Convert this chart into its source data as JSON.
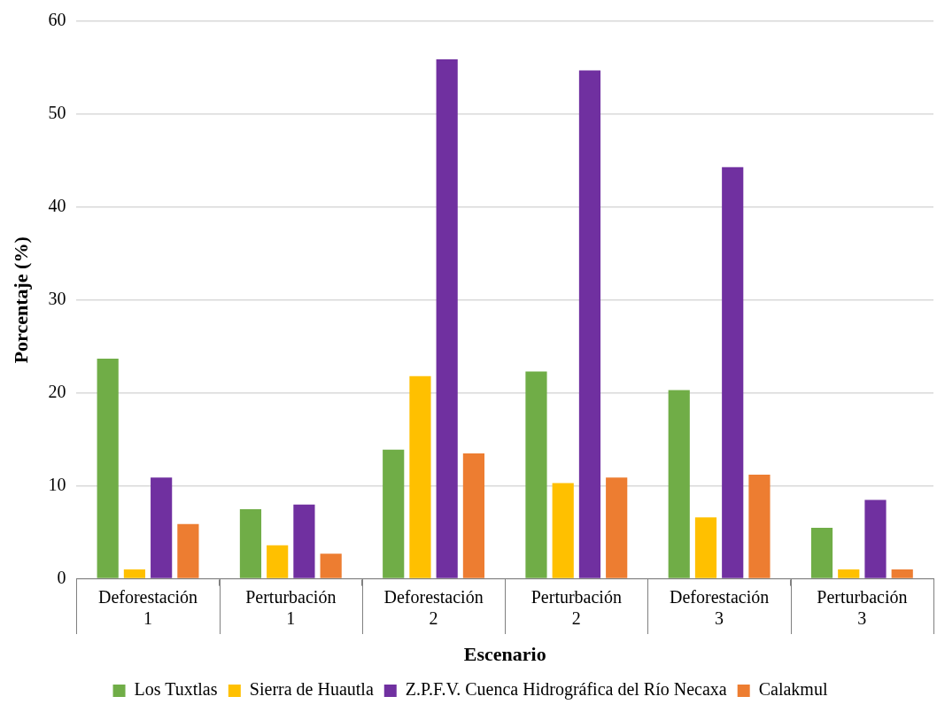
{
  "chart_data": {
    "type": "bar",
    "categories": [
      "Deforestación\n1",
      "Perturbación\n1",
      "Deforestación\n2",
      "Perturbación\n2",
      "Deforestación\n3",
      "Perturbación\n3"
    ],
    "series": [
      {
        "name": "Los Tuxtlas",
        "color": "#70ad47",
        "values": [
          23.7,
          7.5,
          13.9,
          22.3,
          20.3,
          5.5
        ]
      },
      {
        "name": "Sierra de Huautla",
        "color": "#ffc000",
        "values": [
          1.0,
          3.6,
          21.8,
          10.3,
          6.6,
          1.0
        ]
      },
      {
        "name": "Z.P.F.V. Cuenca Hidrográfica del Río Necaxa",
        "color": "#7030a0",
        "values": [
          10.9,
          8.0,
          55.9,
          54.7,
          44.3,
          8.5
        ]
      },
      {
        "name": "Calakmul",
        "color": "#ed7d31",
        "values": [
          5.9,
          2.7,
          13.5,
          10.9,
          11.2,
          1.0
        ]
      }
    ],
    "xlabel": "Escenario",
    "ylabel": "Porcentaje (%)",
    "ylim": [
      0,
      60
    ],
    "yticks": [
      0,
      10,
      20,
      30,
      40,
      50,
      60
    ],
    "grid": "y",
    "legend": "bottom"
  }
}
